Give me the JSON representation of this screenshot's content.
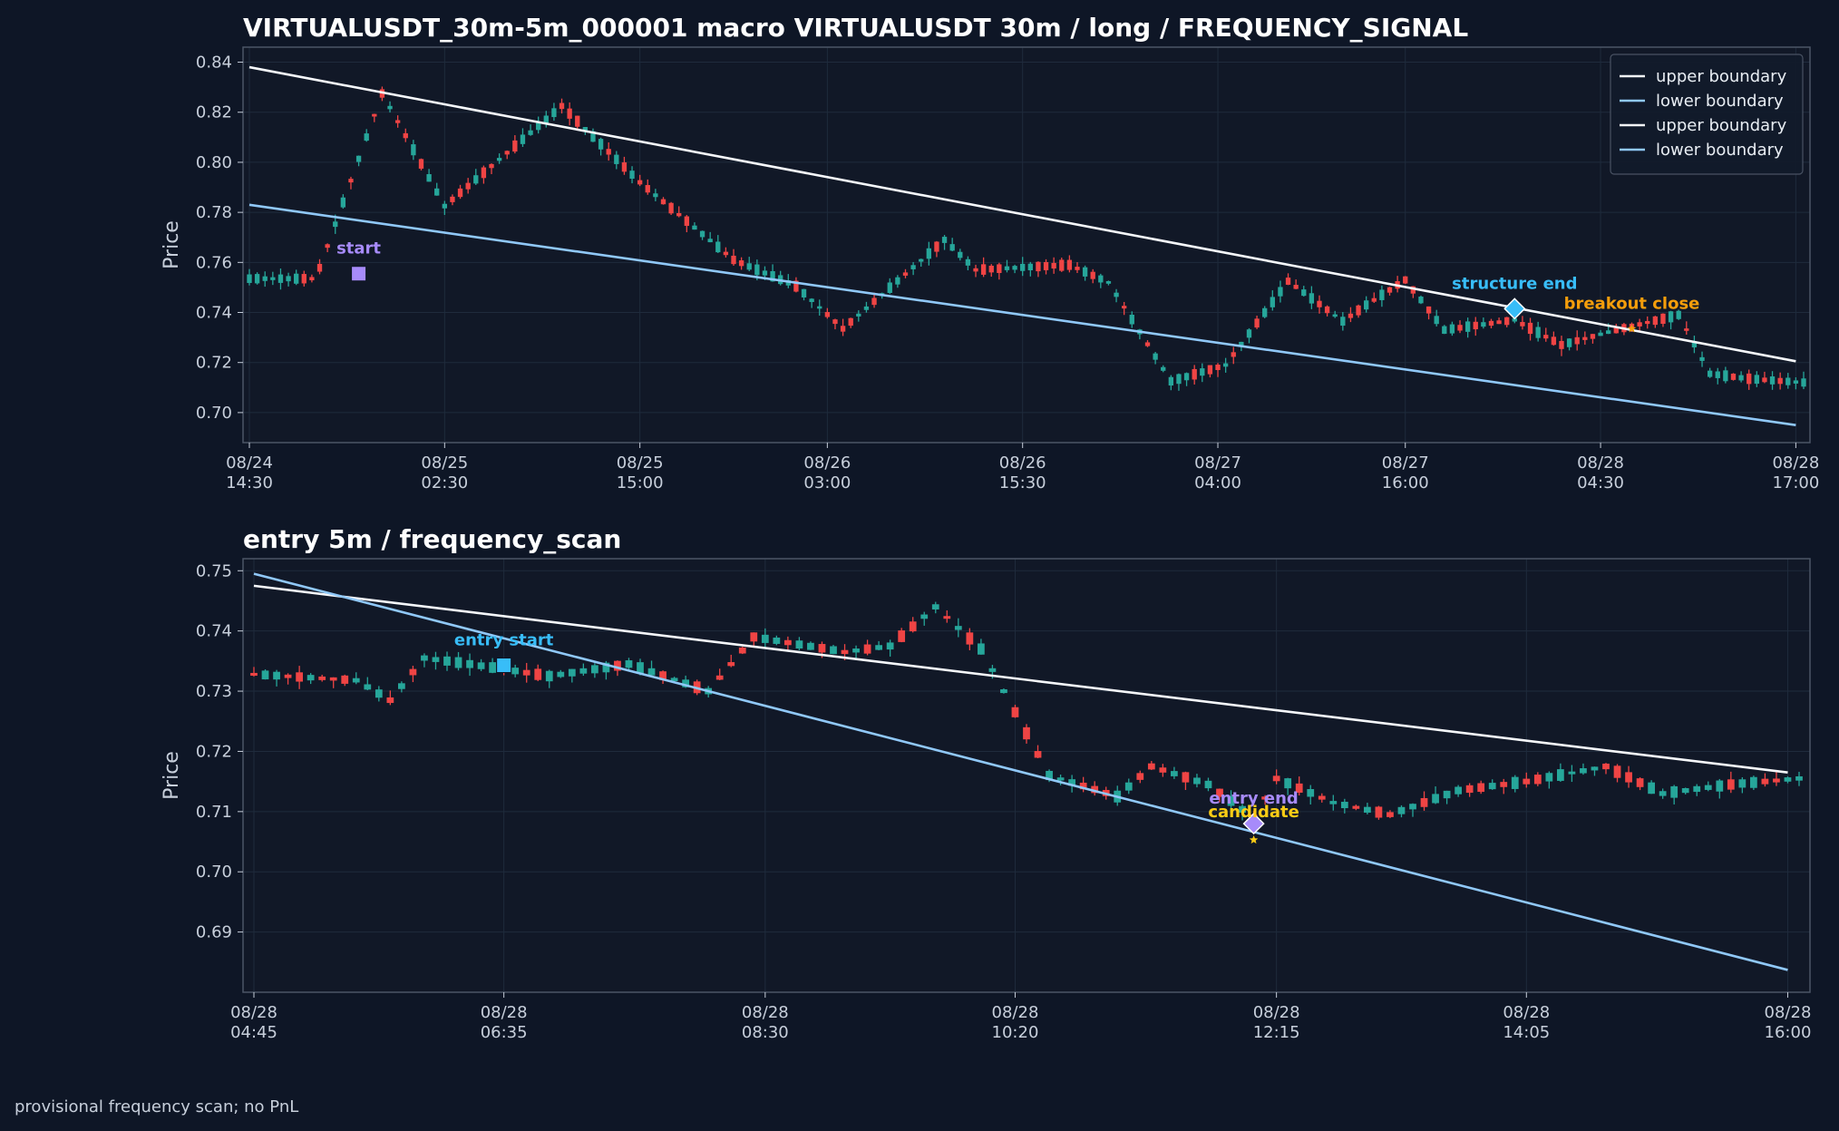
{
  "colors": {
    "background": "#0e1626",
    "panel": "#111827",
    "grid": "#1f2b3c",
    "axis": "#4b5566",
    "up": "#26a69a",
    "down": "#ef4444",
    "upper_boundary": "#f5f7fa",
    "lower_boundary": "#90c8f8",
    "start": "#a78bfa",
    "structure_end": "#38bdf8",
    "breakout_close": "#f59e0b",
    "entry_start": "#38bdf8",
    "entry_end": "#a78bfa",
    "candidate": "#facc15"
  },
  "footer": "provisional frequency scan; no PnL",
  "chart_data": [
    {
      "type": "candlestick",
      "title": "VIRTUALUSDT_30m-5m_000001 macro VIRTUALUSDT 30m / long / FREQUENCY_SIGNAL",
      "ylabel": "Price",
      "ylim": [
        0.688,
        0.846
      ],
      "yticks": [
        "0.70",
        "0.72",
        "0.74",
        "0.76",
        "0.78",
        "0.80",
        "0.82",
        "0.84"
      ],
      "ytick_values": [
        0.7,
        0.72,
        0.74,
        0.76,
        0.78,
        0.8,
        0.82,
        0.84
      ],
      "n_candles": 200,
      "xtick_index": [
        0,
        25,
        50,
        74,
        99,
        124,
        148,
        173,
        198
      ],
      "xticks": [
        [
          "08/24",
          "14:30"
        ],
        [
          "08/25",
          "02:30"
        ],
        [
          "08/25",
          "15:00"
        ],
        [
          "08/26",
          "03:00"
        ],
        [
          "08/26",
          "15:30"
        ],
        [
          "08/27",
          "04:00"
        ],
        [
          "08/27",
          "16:00"
        ],
        [
          "08/28",
          "04:30"
        ],
        [
          "08/28",
          "17:00"
        ]
      ],
      "legend": {
        "position": "top-right",
        "entries": [
          {
            "label": "upper boundary",
            "color": "#f5f7fa"
          },
          {
            "label": "lower boundary",
            "color": "#90c8f8"
          },
          {
            "label": "upper boundary",
            "color": "#f5f7fa"
          },
          {
            "label": "lower boundary",
            "color": "#90c8f8"
          }
        ]
      },
      "lines": [
        {
          "label": "upper boundary",
          "x": [
            0,
            198
          ],
          "y": [
            0.838,
            0.7205
          ]
        },
        {
          "label": "lower boundary",
          "x": [
            0,
            198
          ],
          "y": [
            0.783,
            0.695
          ]
        }
      ],
      "anchors": [
        {
          "x": 8.5,
          "y": 0.7535,
          "v": 0.7615
        },
        {
          "x": 17,
          "y": 0.8275,
          "v": 0.822
        },
        {
          "x": 25,
          "y": 0.7825,
          "v": 0.779
        },
        {
          "x": 40,
          "y": 0.8225,
          "v": 0.8175
        },
        {
          "x": 50,
          "y": 0.792,
          "v": 0.792
        },
        {
          "x": 62,
          "y": 0.761,
          "v": 0.761
        },
        {
          "x": 70,
          "y": 0.7505,
          "v": 0.75
        },
        {
          "x": 76,
          "y": 0.7335,
          "v": 0.734
        },
        {
          "x": 89,
          "y": 0.769,
          "v": 0.762
        },
        {
          "x": 93,
          "y": 0.757,
          "v": 0.757
        },
        {
          "x": 105,
          "y": 0.759,
          "v": 0.754
        },
        {
          "x": 110,
          "y": 0.752,
          "v": 0.752
        },
        {
          "x": 118,
          "y": 0.7125,
          "v": 0.714
        },
        {
          "x": 125,
          "y": 0.719,
          "v": 0.721
        },
        {
          "x": 133,
          "y": 0.7525,
          "v": 0.751
        },
        {
          "x": 140,
          "y": 0.7365,
          "v": 0.736
        },
        {
          "x": 143,
          "y": 0.743,
          "v": 0.742
        },
        {
          "x": 148,
          "y": 0.753,
          "v": 0.758
        },
        {
          "x": 153,
          "y": 0.733,
          "v": 0.733
        },
        {
          "x": 162,
          "y": 0.737,
          "v": 0.74
        },
        {
          "x": 168,
          "y": 0.727,
          "v": 0.727
        },
        {
          "x": 175,
          "y": 0.733,
          "v": 0.735
        },
        {
          "x": 183,
          "y": 0.739,
          "v": 0.742
        },
        {
          "x": 187,
          "y": 0.7155,
          "v": 0.716
        },
        {
          "x": 192,
          "y": 0.7135,
          "v": 0.713
        },
        {
          "x": 199,
          "y": 0.712,
          "v": 0.713
        }
      ],
      "markers": [
        {
          "label": "start",
          "x": 14,
          "y": 0.7555,
          "shape": "square",
          "color": "#a78bfa",
          "dx": 0,
          "dy": -22
        },
        {
          "label": "structure end",
          "x": 162,
          "y": 0.7415,
          "shape": "diamond",
          "color": "#38bdf8",
          "dx": 0,
          "dy": -22
        },
        {
          "label": "breakout close",
          "x": 177,
          "y": 0.7335,
          "shape": "star",
          "color": "#f59e0b",
          "dx": 0,
          "dy": -22
        }
      ]
    },
    {
      "type": "candlestick",
      "title": "entry 5m / frequency_scan",
      "ylabel": "Price",
      "ylim": [
        0.68,
        0.752
      ],
      "yticks": [
        "0.69",
        "0.70",
        "0.71",
        "0.72",
        "0.73",
        "0.74",
        "0.75"
      ],
      "ytick_values": [
        0.69,
        0.7,
        0.71,
        0.72,
        0.73,
        0.74,
        0.75
      ],
      "n_candles": 137,
      "xtick_index": [
        0,
        22,
        45,
        67,
        90,
        112,
        135
      ],
      "xticks": [
        [
          "08/28",
          "04:45"
        ],
        [
          "08/28",
          "06:35"
        ],
        [
          "08/28",
          "08:30"
        ],
        [
          "08/28",
          "10:20"
        ],
        [
          "08/28",
          "12:15"
        ],
        [
          "08/28",
          "14:05"
        ],
        [
          "08/28",
          "16:00"
        ]
      ],
      "lines": [
        {
          "label": "upper boundary",
          "x": [
            0,
            135
          ],
          "y": [
            0.7475,
            0.7165
          ]
        },
        {
          "label": "lower boundary",
          "x": [
            0,
            135
          ],
          "y": [
            0.7495,
            0.6837
          ]
        }
      ],
      "anchors": [
        {
          "x": 0,
          "y": 0.7328,
          "v": 0.733
        },
        {
          "x": 9,
          "y": 0.7318,
          "v": 0.732
        },
        {
          "x": 12,
          "y": 0.7285,
          "v": 0.729
        },
        {
          "x": 15,
          "y": 0.7355,
          "v": 0.736
        },
        {
          "x": 19,
          "y": 0.7345,
          "v": 0.735
        },
        {
          "x": 26,
          "y": 0.7325,
          "v": 0.732
        },
        {
          "x": 33,
          "y": 0.7345,
          "v": 0.735
        },
        {
          "x": 40,
          "y": 0.73,
          "v": 0.73
        },
        {
          "x": 44,
          "y": 0.739,
          "v": 0.738
        },
        {
          "x": 52,
          "y": 0.7365,
          "v": 0.737
        },
        {
          "x": 56,
          "y": 0.7375,
          "v": 0.738
        },
        {
          "x": 60,
          "y": 0.744,
          "v": 0.743
        },
        {
          "x": 64,
          "y": 0.737,
          "v": 0.736
        },
        {
          "x": 70,
          "y": 0.716,
          "v": 0.717
        },
        {
          "x": 76,
          "y": 0.7125,
          "v": 0.713
        },
        {
          "x": 79,
          "y": 0.7175,
          "v": 0.718
        },
        {
          "x": 84,
          "y": 0.7145,
          "v": 0.715
        },
        {
          "x": 88,
          "y": 0.709,
          "v": 0.709
        },
        {
          "x": 90,
          "y": 0.7155,
          "v": 0.716
        },
        {
          "x": 95,
          "y": 0.7115,
          "v": 0.711
        },
        {
          "x": 100,
          "y": 0.7095,
          "v": 0.709
        },
        {
          "x": 106,
          "y": 0.7135,
          "v": 0.713
        },
        {
          "x": 112,
          "y": 0.715,
          "v": 0.715
        },
        {
          "x": 119,
          "y": 0.7175,
          "v": 0.717
        },
        {
          "x": 124,
          "y": 0.713,
          "v": 0.713
        },
        {
          "x": 130,
          "y": 0.7145,
          "v": 0.7145
        },
        {
          "x": 136,
          "y": 0.7155,
          "v": 0.716
        }
      ],
      "markers": [
        {
          "label": "entry start",
          "x": 22,
          "y": 0.7343,
          "shape": "square",
          "color": "#38bdf8",
          "dx": 0,
          "dy": -22
        },
        {
          "label": "entry end",
          "x": 88,
          "y": 0.708,
          "shape": "diamond",
          "color": "#a78bfa",
          "dx": 0,
          "dy": -22
        },
        {
          "label": "candidate",
          "x": 88,
          "y": 0.7053,
          "shape": "star",
          "color": "#facc15",
          "dx": 0,
          "dy": -25
        }
      ]
    }
  ]
}
